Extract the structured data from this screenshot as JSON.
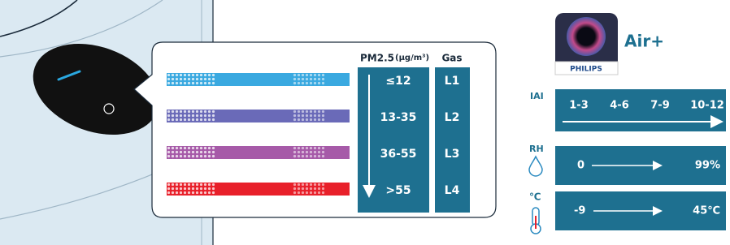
{
  "app": {
    "name": "Air+",
    "brand": "PHILIPS"
  },
  "legend": {
    "pm_header": "PM2.5",
    "pm_unit": "(μg/m³)",
    "gas_header": "Gas",
    "rows": [
      {
        "pm": "≤12",
        "gas": "L1"
      },
      {
        "pm": "13-35",
        "gas": "L2"
      },
      {
        "pm": "36-55",
        "gas": "L3"
      },
      {
        "pm": ">55",
        "gas": "L4"
      }
    ]
  },
  "scales": [
    {
      "label": "IAI",
      "ticks": [
        "1-3",
        "4-6",
        "7-9",
        "10-12"
      ]
    },
    {
      "label": "RH",
      "start": "0",
      "end": "99%"
    },
    {
      "label": "℃",
      "start": "-9",
      "end": "45℃"
    }
  ]
}
